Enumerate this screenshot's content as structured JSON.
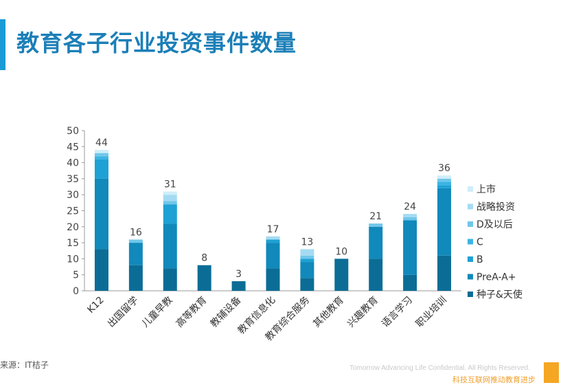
{
  "slide": {
    "title": "教育各子行业投资事件数量",
    "source": "来源：IT桔子",
    "footer_en": "Tomorrow Advancing Life Confidential. All Rights Reserved.",
    "footer_cn": "科技互联网推动教育进步"
  },
  "chart_data": {
    "type": "bar",
    "stacked": true,
    "title": "",
    "xlabel": "",
    "ylabel": "",
    "ylim": [
      0,
      50
    ],
    "yticks": [
      0,
      5,
      10,
      15,
      20,
      25,
      30,
      35,
      40,
      45,
      50
    ],
    "grid": false,
    "legend_position": "right",
    "categories": [
      "K12",
      "出国留学",
      "儿童早教",
      "高等教育",
      "教辅设备",
      "教育信息化",
      "教育综合服务",
      "其他教育",
      "兴趣教育",
      "语言学习",
      "职业培训"
    ],
    "totals": [
      44,
      16,
      31,
      8,
      3,
      17,
      13,
      10,
      21,
      24,
      36
    ],
    "series": [
      {
        "name": "种子&天使",
        "color": "#0b6d96",
        "values": [
          13,
          8,
          7,
          8,
          3,
          7,
          4,
          10,
          10,
          5,
          11
        ]
      },
      {
        "name": "PreA-A+",
        "color": "#1189bb",
        "values": [
          22,
          7,
          14,
          0,
          0,
          8,
          5,
          0,
          10,
          17,
          21
        ]
      },
      {
        "name": "B",
        "color": "#1ea1d4",
        "values": [
          6,
          0,
          6,
          0,
          0,
          1,
          1,
          0,
          0,
          0,
          1
        ]
      },
      {
        "name": "C",
        "color": "#3bb4e2",
        "values": [
          1,
          0,
          0,
          0,
          0,
          0,
          0,
          0,
          0,
          0,
          1
        ]
      },
      {
        "name": "D及以后",
        "color": "#70c7ea",
        "values": [
          1,
          1,
          1,
          0,
          0,
          0,
          1,
          0,
          1,
          1,
          1
        ]
      },
      {
        "name": "战略投资",
        "color": "#a4dbf2",
        "values": [
          0,
          0,
          2,
          0,
          0,
          1,
          2,
          0,
          0,
          1,
          0
        ]
      },
      {
        "name": "上市",
        "color": "#cfeefa",
        "values": [
          1,
          0,
          1,
          0,
          0,
          0,
          0,
          0,
          0,
          0,
          1
        ]
      }
    ]
  }
}
